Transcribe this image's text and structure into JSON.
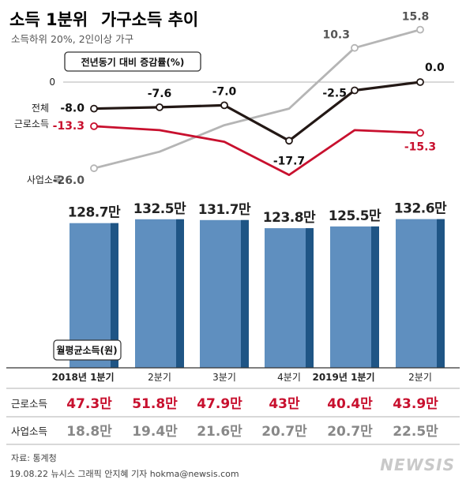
{
  "title_a": "소득 1분위",
  "title_b": "가구소득 추이",
  "subtitle": "소득하위 20%, 2인이상 가구",
  "box_label": "전년동기 대비 증감률(%)",
  "zero_label": "0",
  "bar_box_label": "월평균소득(원)",
  "source": "자료: 통계청",
  "credit": "19.08.22 뉴시스 그래픽 안지혜 기자 hokma@newsis.com",
  "logo_text": "NEWSIS",
  "chart_data": [
    {
      "type": "line",
      "title": "전년동기 대비 증감률(%)",
      "categories": [
        "2018년 1분기",
        "2분기",
        "3분기",
        "4분기",
        "2019년 1분기",
        "2분기"
      ],
      "ylim": [
        -28,
        18
      ],
      "series": [
        {
          "name": "전체",
          "color": "#231815",
          "values": [
            -8.0,
            -7.6,
            -7.0,
            -17.7,
            -2.5,
            0.0
          ],
          "labels": [
            "-8.0",
            "-7.6",
            "-7.0",
            "-17.7",
            "-2.5",
            "0.0"
          ],
          "show_labels": [
            true,
            true,
            true,
            true,
            true,
            true
          ],
          "markers": [
            true,
            true,
            true,
            true,
            true,
            true
          ]
        },
        {
          "name": "근로소득",
          "color": "#c8102e",
          "values": [
            -13.3,
            -14.5,
            -18.0,
            -28.0,
            -14.5,
            -15.3
          ],
          "labels": [
            "-13.3",
            "",
            "",
            "",
            "",
            "-15.3"
          ],
          "show_labels": [
            true,
            false,
            false,
            false,
            false,
            true
          ],
          "markers": [
            true,
            false,
            false,
            false,
            false,
            true
          ]
        },
        {
          "name": "사업소득",
          "color": "#b5b5b5",
          "values": [
            -26.0,
            -21.0,
            -13.0,
            -8.0,
            10.3,
            15.8
          ],
          "labels": [
            "-26.0",
            "",
            "",
            "",
            "10.3",
            "15.8"
          ],
          "show_labels": [
            true,
            false,
            false,
            false,
            true,
            true
          ],
          "markers": [
            true,
            false,
            false,
            false,
            true,
            true
          ]
        }
      ]
    },
    {
      "type": "bar",
      "title": "월평균소득(원)",
      "categories": [
        "2018년 1분기",
        "2분기",
        "3분기",
        "4분기",
        "2019년 1분기",
        "2분기"
      ],
      "values": [
        128.7,
        132.5,
        131.7,
        123.8,
        125.5,
        132.6
      ],
      "labels": [
        "128.7만",
        "132.5만",
        "131.7만",
        "123.8만",
        "125.5만",
        "132.6만"
      ],
      "ylim": [
        0,
        140
      ],
      "colors": {
        "bar": "#5f8fbf",
        "side": "#1f5585"
      }
    },
    {
      "type": "table",
      "rows": [
        {
          "label": "근로소득",
          "color": "#c8102e",
          "values": [
            "47.3만",
            "51.8만",
            "47.9만",
            "43만",
            "40.4만",
            "43.9만"
          ]
        },
        {
          "label": "사업소득",
          "color": "#888888",
          "values": [
            "18.8만",
            "19.4만",
            "21.6만",
            "20.7만",
            "20.7만",
            "22.5만"
          ]
        }
      ]
    }
  ]
}
